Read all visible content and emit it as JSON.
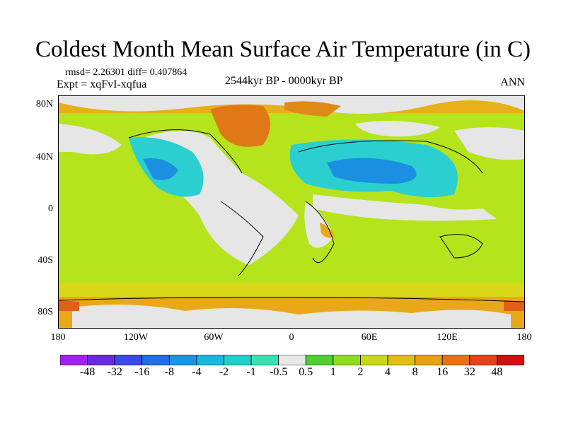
{
  "header": {
    "title": "Coldest Month Mean Surface Air Temperature (in C)",
    "stats": "rmsd= 2.26301 diff= 0.407864",
    "expt": "Expt = xqFvI-xqfua",
    "period": "2544kyr BP - 0000kyr BP",
    "season": "ANN"
  },
  "axes": {
    "lat_labels": [
      "80N",
      "40N",
      "0",
      "40S",
      "80S"
    ],
    "lon_labels": [
      "180",
      "120W",
      "60W",
      "0",
      "60E",
      "120E",
      "180"
    ]
  },
  "colorbar": {
    "labels": [
      "-48",
      "-32",
      "-16",
      "-8",
      "-4",
      "-2",
      "-1",
      "-0.5",
      "0.5",
      "1",
      "2",
      "4",
      "8",
      "16",
      "32",
      "48"
    ],
    "colors": [
      "#a020f0",
      "#6a2be0",
      "#3a4ae8",
      "#1f6fe8",
      "#1a96e0",
      "#1ab8e0",
      "#20d0c8",
      "#3ae0b0",
      "#e8e8e8",
      "#50d030",
      "#90dc20",
      "#c8d818",
      "#e0c010",
      "#e8a010",
      "#e87018",
      "#e84018",
      "#d01010"
    ]
  },
  "palette": {
    "ocean": "#b6e41c",
    "gray": "#e6e6e6",
    "cyan": "#2ccfd0",
    "blue": "#1c90e0",
    "orange": "#e8a818",
    "red": "#e06018",
    "yellow": "#d8d818",
    "green": "#58d038"
  }
}
